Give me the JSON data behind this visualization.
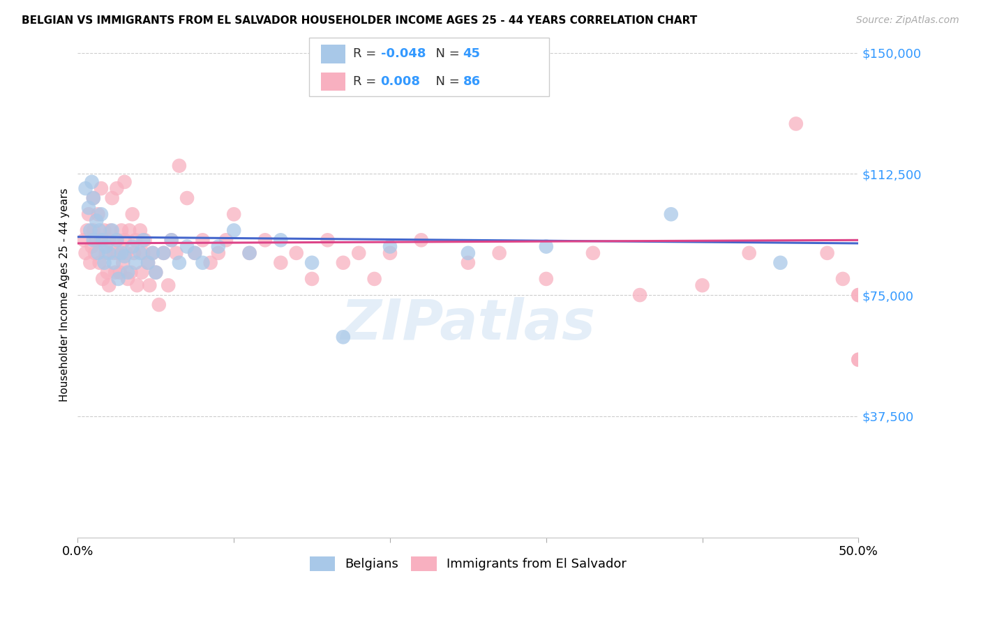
{
  "title": "BELGIAN VS IMMIGRANTS FROM EL SALVADOR HOUSEHOLDER INCOME AGES 25 - 44 YEARS CORRELATION CHART",
  "source": "Source: ZipAtlas.com",
  "ylabel": "Householder Income Ages 25 - 44 years",
  "yticks": [
    0,
    37500,
    75000,
    112500,
    150000
  ],
  "ytick_labels": [
    "",
    "$37,500",
    "$75,000",
    "$112,500",
    "$150,000"
  ],
  "xmin": 0.0,
  "xmax": 0.5,
  "ymin": 0,
  "ymax": 150000,
  "watermark": "ZIPatlas",
  "blue_color": "#a8c8e8",
  "pink_color": "#f8b0c0",
  "blue_line_color": "#4466cc",
  "pink_line_color": "#dd4488",
  "blue_R": -0.048,
  "pink_R": 0.008,
  "blue_N": 45,
  "pink_N": 86,
  "blue_x": [
    0.005,
    0.007,
    0.008,
    0.009,
    0.01,
    0.01,
    0.012,
    0.013,
    0.014,
    0.015,
    0.016,
    0.017,
    0.018,
    0.02,
    0.022,
    0.023,
    0.025,
    0.026,
    0.028,
    0.03,
    0.032,
    0.035,
    0.037,
    0.04,
    0.042,
    0.045,
    0.048,
    0.05,
    0.055,
    0.06,
    0.065,
    0.07,
    0.075,
    0.08,
    0.09,
    0.1,
    0.11,
    0.13,
    0.15,
    0.17,
    0.2,
    0.25,
    0.3,
    0.38,
    0.45
  ],
  "blue_y": [
    108000,
    102000,
    95000,
    110000,
    105000,
    92000,
    98000,
    88000,
    95000,
    100000,
    92000,
    85000,
    90000,
    88000,
    95000,
    85000,
    92000,
    80000,
    88000,
    87000,
    82000,
    90000,
    85000,
    88000,
    92000,
    85000,
    88000,
    82000,
    88000,
    92000,
    85000,
    90000,
    88000,
    85000,
    90000,
    95000,
    88000,
    92000,
    85000,
    62000,
    90000,
    88000,
    90000,
    100000,
    85000
  ],
  "pink_x": [
    0.004,
    0.005,
    0.006,
    0.007,
    0.008,
    0.009,
    0.01,
    0.01,
    0.011,
    0.012,
    0.013,
    0.014,
    0.015,
    0.015,
    0.016,
    0.017,
    0.018,
    0.019,
    0.02,
    0.02,
    0.021,
    0.022,
    0.023,
    0.024,
    0.025,
    0.025,
    0.026,
    0.027,
    0.028,
    0.029,
    0.03,
    0.03,
    0.031,
    0.032,
    0.033,
    0.034,
    0.035,
    0.036,
    0.037,
    0.038,
    0.04,
    0.041,
    0.042,
    0.043,
    0.045,
    0.046,
    0.048,
    0.05,
    0.052,
    0.055,
    0.058,
    0.06,
    0.063,
    0.065,
    0.07,
    0.075,
    0.08,
    0.085,
    0.09,
    0.095,
    0.1,
    0.11,
    0.12,
    0.13,
    0.14,
    0.15,
    0.16,
    0.17,
    0.18,
    0.19,
    0.2,
    0.22,
    0.25,
    0.27,
    0.3,
    0.33,
    0.36,
    0.4,
    0.43,
    0.46,
    0.48,
    0.49,
    0.5,
    0.5,
    0.5,
    0.5
  ],
  "pink_y": [
    92000,
    88000,
    95000,
    100000,
    85000,
    90000,
    95000,
    105000,
    88000,
    92000,
    100000,
    85000,
    108000,
    92000,
    80000,
    95000,
    88000,
    82000,
    92000,
    78000,
    95000,
    105000,
    88000,
    82000,
    108000,
    92000,
    88000,
    82000,
    95000,
    85000,
    110000,
    92000,
    88000,
    80000,
    95000,
    82000,
    100000,
    88000,
    92000,
    78000,
    95000,
    82000,
    88000,
    92000,
    85000,
    78000,
    88000,
    82000,
    72000,
    88000,
    78000,
    92000,
    88000,
    115000,
    105000,
    88000,
    92000,
    85000,
    88000,
    92000,
    100000,
    88000,
    92000,
    85000,
    88000,
    80000,
    92000,
    85000,
    88000,
    80000,
    88000,
    92000,
    85000,
    88000,
    80000,
    88000,
    75000,
    78000,
    88000,
    128000,
    88000,
    80000,
    55000,
    55000,
    75000,
    75000
  ]
}
